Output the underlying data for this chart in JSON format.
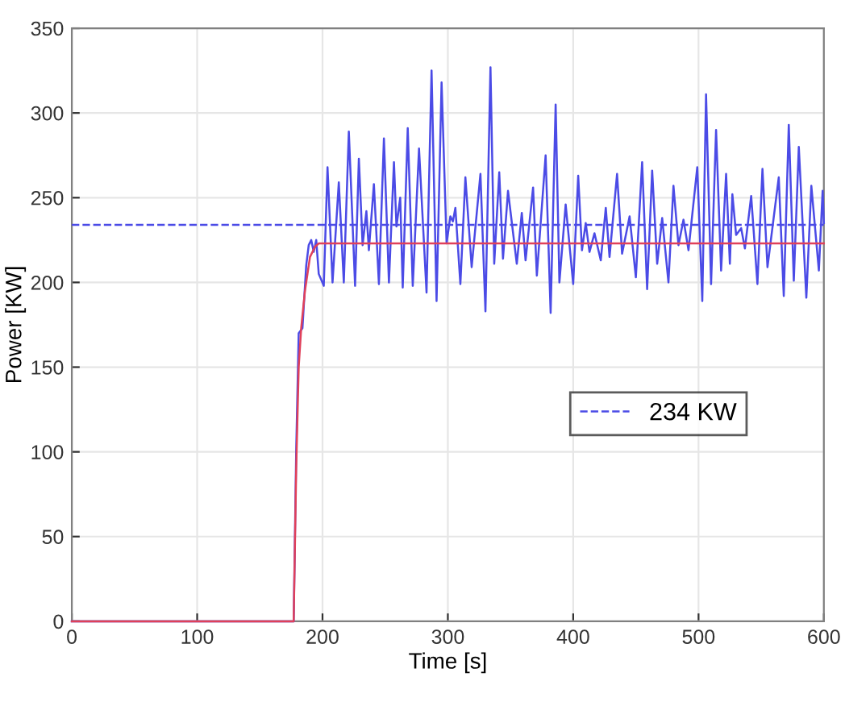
{
  "chart_data": {
    "type": "line",
    "xlabel": "Time [s]",
    "ylabel": "Power [KW]",
    "xlim": [
      0,
      600
    ],
    "ylim": [
      0,
      350
    ],
    "xticks": [
      0,
      100,
      200,
      300,
      400,
      500,
      600
    ],
    "yticks": [
      0,
      50,
      100,
      150,
      200,
      250,
      300,
      350
    ],
    "grid": true,
    "legend": "right",
    "series": [
      {
        "color": "#4b4be6",
        "x": [
          0,
          177,
          179,
          181,
          184,
          187,
          189,
          191,
          193,
          195,
          197,
          201,
          204,
          208,
          213,
          217,
          221,
          226,
          229,
          232,
          235,
          237,
          241,
          245,
          249,
          253,
          257,
          259,
          262,
          264,
          268,
          272,
          277,
          283,
          287,
          291,
          295,
          299,
          302,
          304,
          306,
          310,
          314,
          319,
          326,
          330,
          334,
          337,
          341,
          344,
          348,
          355,
          359,
          362,
          368,
          371,
          378,
          382,
          386,
          389,
          394,
          400,
          404,
          407,
          410,
          413,
          417,
          422,
          426,
          429,
          435,
          439,
          445,
          450,
          455,
          459,
          463,
          467,
          471,
          476,
          480,
          484,
          488,
          492,
          499,
          503,
          506,
          510,
          514,
          518,
          522,
          525,
          527,
          530,
          534,
          537,
          542,
          547,
          551,
          555,
          564,
          568,
          572,
          576,
          580,
          586,
          590,
          596,
          599,
          600
        ],
        "values": [
          0,
          0,
          100,
          170,
          173,
          210,
          222,
          225,
          218,
          225,
          205,
          198,
          268,
          200,
          259,
          200,
          289,
          198,
          273,
          222,
          242,
          219,
          258,
          199,
          285,
          200,
          271,
          233,
          250,
          197,
          291,
          198,
          279,
          194,
          325,
          189,
          318,
          223,
          239,
          236,
          244,
          199,
          262,
          209,
          264,
          183,
          327,
          211,
          265,
          214,
          254,
          211,
          241,
          213,
          256,
          204,
          275,
          182,
          305,
          200,
          246,
          199,
          263,
          219,
          235,
          218,
          229,
          213,
          244,
          215,
          264,
          217,
          239,
          203,
          271,
          196,
          266,
          211,
          238,
          200,
          257,
          222,
          237,
          219,
          268,
          189,
          311,
          199,
          290,
          207,
          264,
          211,
          252,
          228,
          232,
          220,
          251,
          199,
          267,
          209,
          262,
          192,
          293,
          201,
          280,
          191,
          257,
          207,
          254,
          235
        ]
      },
      {
        "color": "#e0405a",
        "x": [
          0,
          177,
          179,
          181,
          183,
          186,
          190,
          194,
          197,
          200,
          600
        ],
        "values": [
          0,
          0,
          90,
          150,
          173,
          195,
          215,
          221,
          223,
          223,
          223
        ]
      },
      {
        "name": "234 KW",
        "color": "#4b4be6",
        "line_style": "dashed",
        "x": [
          0,
          600
        ],
        "values": [
          234,
          234
        ]
      }
    ]
  }
}
